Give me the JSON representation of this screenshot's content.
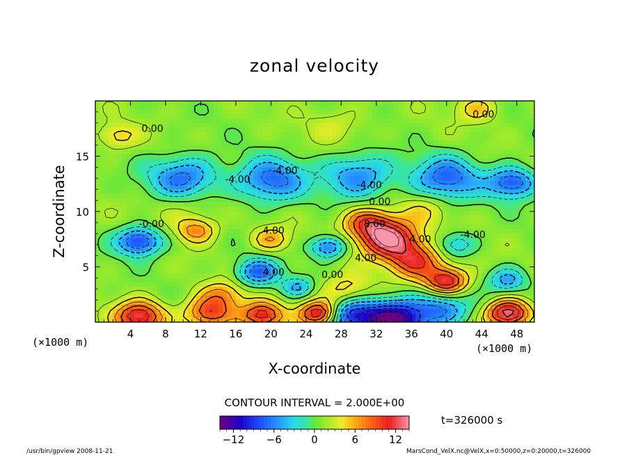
{
  "chart_data": {
    "type": "heatmap",
    "title": "zonal velocity",
    "xlabel": "X-coordinate",
    "ylabel": "Z-coordinate",
    "x_unit_left": "(×1000 m)",
    "x_unit_right": "(×1000 m)",
    "xlim": [
      0,
      50
    ],
    "ylim": [
      0,
      20
    ],
    "xticks": [
      4,
      8,
      12,
      16,
      20,
      24,
      28,
      32,
      36,
      40,
      44,
      48
    ],
    "yticks": [
      5,
      10,
      15
    ],
    "contour_interval_text": "CONTOUR INTERVAL = 2.000E+00",
    "time_label": "t=326000 s",
    "colorbar": {
      "min": -14,
      "max": 14,
      "ticks": [
        -12,
        -6,
        0,
        6,
        12
      ]
    },
    "contour_labels": [
      {
        "text": "0.00",
        "x": 6.5,
        "y": 17.2
      },
      {
        "text": "0.00",
        "x": 44.2,
        "y": 18.5
      },
      {
        "text": "-4.00",
        "x": 16.2,
        "y": 12.6
      },
      {
        "text": "-4.00",
        "x": 21.6,
        "y": 13.4
      },
      {
        "text": "-4.00",
        "x": 31.2,
        "y": 12.1
      },
      {
        "text": "0.00",
        "x": 32.4,
        "y": 10.6
      },
      {
        "text": "-0.00",
        "x": 6.4,
        "y": 8.6
      },
      {
        "text": "4.00",
        "x": 20.3,
        "y": 8.0
      },
      {
        "text": "8.00",
        "x": 31.8,
        "y": 8.6
      },
      {
        "text": "-4.00",
        "x": 43.0,
        "y": 7.6
      },
      {
        "text": "0.00",
        "x": 27.0,
        "y": 4.0
      },
      {
        "text": "4.00",
        "x": 30.8,
        "y": 5.5
      },
      {
        "text": "4.00",
        "x": 20.3,
        "y": 4.2
      },
      {
        "text": "4.00",
        "x": 37.0,
        "y": 7.2
      }
    ],
    "features": [
      {
        "x": 5.0,
        "y": 0.5,
        "v": 11,
        "r": 2.5
      },
      {
        "x": 13.0,
        "y": 0.8,
        "v": 9,
        "r": 2.5
      },
      {
        "x": 19.0,
        "y": 0.6,
        "v": 10,
        "r": 2.2
      },
      {
        "x": 25.5,
        "y": 0.8,
        "v": 12,
        "r": 2.0
      },
      {
        "x": 47.0,
        "y": 0.8,
        "v": 13,
        "r": 2.2
      },
      {
        "x": 34.0,
        "y": 0.2,
        "v": -15,
        "r": 3.2
      },
      {
        "x": 29.0,
        "y": 0.6,
        "v": -9,
        "r": 2.5
      },
      {
        "x": 39.5,
        "y": 1.2,
        "v": -7,
        "r": 2.8
      },
      {
        "x": 33.5,
        "y": 7.5,
        "v": 13,
        "r": 3.0
      },
      {
        "x": 36.5,
        "y": 5.5,
        "v": 9,
        "r": 2.8
      },
      {
        "x": 40.0,
        "y": 3.7,
        "v": 11,
        "r": 2.2
      },
      {
        "x": 31.0,
        "y": 9.0,
        "v": 8,
        "r": 2.5
      },
      {
        "x": 11.5,
        "y": 8.3,
        "v": 6,
        "r": 2.0
      },
      {
        "x": 20.0,
        "y": 7.5,
        "v": 5,
        "r": 2.0
      },
      {
        "x": 14.5,
        "y": 2.5,
        "v": 5,
        "r": 2.2
      },
      {
        "x": 28.5,
        "y": 3.0,
        "v": 4,
        "r": 2.5
      },
      {
        "x": 5.0,
        "y": 7.3,
        "v": -10,
        "r": 2.3
      },
      {
        "x": 18.5,
        "y": 4.5,
        "v": -8,
        "r": 2.2
      },
      {
        "x": 26.5,
        "y": 6.8,
        "v": -8,
        "r": 1.8
      },
      {
        "x": 23.0,
        "y": 3.2,
        "v": -5,
        "r": 1.6
      },
      {
        "x": 47.0,
        "y": 3.8,
        "v": -6,
        "r": 2.0
      },
      {
        "x": 41.0,
        "y": 7.0,
        "v": -5,
        "r": 2.0
      },
      {
        "x": 10.0,
        "y": 13.0,
        "v": -8,
        "r": 3.5
      },
      {
        "x": 20.0,
        "y": 12.8,
        "v": -8,
        "r": 3.5
      },
      {
        "x": 30.0,
        "y": 13.2,
        "v": -7,
        "r": 3.5
      },
      {
        "x": 40.0,
        "y": 13.0,
        "v": -8,
        "r": 3.5
      },
      {
        "x": 47.5,
        "y": 12.6,
        "v": -9,
        "r": 2.5
      },
      {
        "x": 10.0,
        "y": 10.5,
        "v": 2,
        "r": 3.5
      },
      {
        "x": 37.5,
        "y": 10.2,
        "v": 3,
        "r": 2.5
      },
      {
        "x": 2.5,
        "y": 16.8,
        "v": 4,
        "r": 2.0
      },
      {
        "x": 43.5,
        "y": 19.3,
        "v": 4,
        "r": 2.2
      },
      {
        "x": 27.5,
        "y": 17.8,
        "v": 2,
        "r": 3.0
      }
    ]
  },
  "footer": {
    "left": "/usr/bin/gpview   2008-11-21",
    "right": "MarsCond_VelX.nc@VelX,x=0:50000,z=0:20000,t=326000"
  }
}
